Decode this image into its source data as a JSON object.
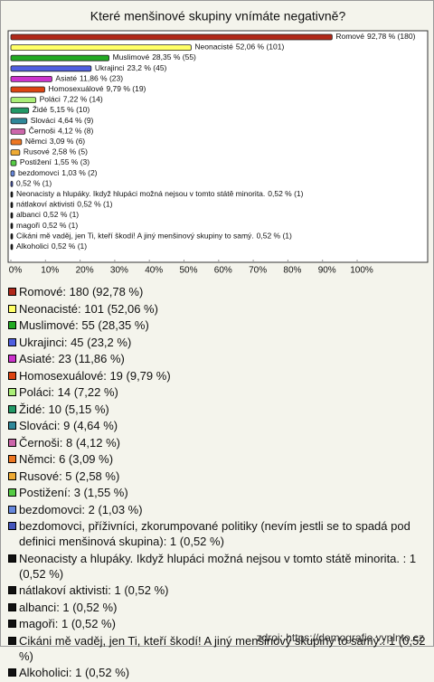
{
  "chart_data": {
    "type": "hbar",
    "title": "Které menšinové skupiny vnímáte negativně?",
    "categories": [
      "Romové",
      "Neonacisté",
      "Muslimové",
      "Ukrajinci",
      "Asiaté",
      "Homosexuálové",
      "Poláci",
      "Židé",
      "Slováci",
      "Černoši",
      "Němci",
      "Rusové",
      "Postižení",
      "bezdomovci",
      "bezdomovci, příživníci, zkorumpované politiky (nevím jestli se to spadá pod definici menšinová skupina)",
      "Neonacisty a hlupáky. Ikdyž hlupáci možná nejsou v tomto státě minorita.",
      "nátlakoví aktivisti",
      "albanci",
      "magoři",
      "Cikáni mě vaděj, jen Ti, kteří škodí! A jiný menšinový skupiny to samý.",
      "Alkoholici"
    ],
    "bar_labels": [
      "Romové",
      "Neonacisté",
      "Muslimové",
      "Ukrajinci",
      "Asiaté",
      "Homosexuálové",
      "Poláci",
      "Židé",
      "Slováci",
      "Černoši",
      "Němci",
      "Rusové",
      "Postižení",
      "bezdomovci",
      null,
      "Neonacisty a hlupáky. Ikdyž hlupáci možná nejsou v tomto státě minorita.",
      "nátlakoví aktivisti",
      "albanci",
      "magoři",
      "Cikáni mě vaděj, jen Ti, kteří škodí! A jiný menšinový skupiny to samý.",
      "Alkoholici"
    ],
    "values": [
      92.78,
      52.06,
      28.35,
      23.2,
      11.86,
      9.79,
      7.22,
      5.15,
      4.64,
      4.12,
      3.09,
      2.58,
      1.55,
      1.03,
      0.52,
      0.52,
      0.52,
      0.52,
      0.52,
      0.52,
      0.52
    ],
    "value_labels": [
      "92,78 % (180)",
      "52,06 % (101)",
      "28,35 % (55)",
      "23,2 % (45)",
      "11,86 % (23)",
      "9,79 % (19)",
      "7,22 % (14)",
      "5,15 % (10)",
      "4,64 % (9)",
      "4,12 % (8)",
      "3,09 % (6)",
      "2,58 % (5)",
      "1,55 % (3)",
      "1,03 % (2)",
      "0,52 % (1)",
      "0,52 % (1)",
      "0,52 % (1)",
      "0,52 % (1)",
      "0,52 % (1)",
      "0,52 % (1)",
      "0,52 % (1)"
    ],
    "legend_value_labels": [
      ": 180 (92,78 %)",
      ": 101 (52,06 %)",
      ": 55 (28,35 %)",
      ": 45 (23,2 %)",
      ": 23 (11,86 %)",
      ": 19 (9,79 %)",
      ": 14 (7,22 %)",
      ": 10 (5,15 %)",
      ": 9 (4,64 %)",
      ": 8 (4,12 %)",
      ": 6 (3,09 %)",
      ": 5 (2,58 %)",
      ": 3 (1,55 %)",
      ": 2 (1,03 %)",
      ": 1 (0,52 %)",
      " : 1 (0,52 %)",
      ": 1 (0,52 %)",
      ": 1 (0,52 %)",
      ": 1 (0,52 %)",
      ": 1 (0,52 %)",
      ": 1 (0,52 %)"
    ],
    "colors": [
      "#b0281a",
      "#ffff66",
      "#22aa22",
      "#4f5fe0",
      "#cc33cc",
      "#dd4411",
      "#aaee77",
      "#229966",
      "#2f8899",
      "#cc66aa",
      "#ee7722",
      "#eeaa33",
      "#55cc44",
      "#6688dd",
      "#4455bb",
      "#111111",
      "#111111",
      "#111111",
      "#111111",
      "#111111",
      "#111111"
    ],
    "xlim": [
      0,
      100
    ],
    "xticks": [
      {
        "value": 0,
        "label": "0%"
      },
      {
        "value": 10,
        "label": "10%"
      },
      {
        "value": 20,
        "label": "20%"
      },
      {
        "value": 30,
        "label": "30%"
      },
      {
        "value": 40,
        "label": "40%"
      },
      {
        "value": 50,
        "label": "50%"
      },
      {
        "value": 60,
        "label": "60%"
      },
      {
        "value": 70,
        "label": "70%"
      },
      {
        "value": 80,
        "label": "80%"
      },
      {
        "value": 90,
        "label": "90%"
      },
      {
        "value": 100,
        "label": "100%"
      }
    ],
    "source": "zdroj: https://demografie.vyplnto.cz"
  }
}
